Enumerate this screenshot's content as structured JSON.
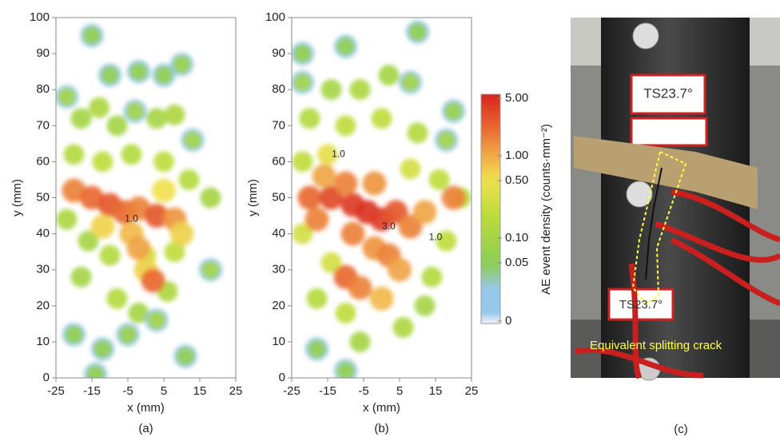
{
  "chart_data": [
    {
      "type": "heatmap",
      "label": "(a)",
      "xlabel": "x (mm)",
      "ylabel": "y (mm)",
      "xlim": [
        -25,
        25
      ],
      "ylim": [
        0,
        100
      ],
      "xticks": [
        -25,
        -15,
        -5,
        5,
        15,
        25
      ],
      "yticks": [
        0,
        10,
        20,
        30,
        40,
        50,
        60,
        70,
        80,
        90,
        100
      ],
      "x": [
        -22,
        -18,
        -13,
        -8,
        -3,
        3,
        8,
        13,
        -20,
        -12,
        -4,
        5,
        12,
        18,
        -22,
        -16,
        -10,
        0,
        8,
        18,
        -18,
        -8,
        -2,
        6,
        -20,
        -12,
        -5,
        3,
        11,
        -15,
        -10,
        -2,
        5,
        10,
        -14,
        -20,
        -15,
        -10,
        -6,
        -2,
        3,
        8,
        -4,
        0,
        2,
        -2,
        10,
        -12,
        5
      ],
      "y": [
        78,
        72,
        75,
        70,
        74,
        72,
        73,
        66,
        62,
        60,
        62,
        60,
        55,
        50,
        44,
        38,
        34,
        34,
        35,
        30,
        28,
        22,
        18,
        24,
        12,
        8,
        12,
        16,
        6,
        95,
        84,
        85,
        84,
        87,
        1,
        52,
        50,
        48,
        46,
        47,
        45,
        44,
        40,
        30,
        27,
        36,
        40,
        42,
        52
      ],
      "values": [
        0.08,
        0.1,
        0.12,
        0.1,
        0.08,
        0.1,
        0.12,
        0.08,
        0.15,
        0.2,
        0.15,
        0.2,
        0.15,
        0.1,
        0.12,
        0.1,
        0.15,
        0.3,
        0.2,
        0.08,
        0.1,
        0.15,
        0.1,
        0.12,
        0.05,
        0.05,
        0.06,
        0.08,
        0.05,
        0.05,
        0.05,
        0.05,
        0.05,
        0.06,
        0.05,
        1.5,
        2,
        2.5,
        2,
        1.5,
        2.5,
        1.2,
        0.8,
        0.6,
        2,
        1,
        0.6,
        0.6,
        0.5
      ],
      "annotations": [
        {
          "text": "1.0",
          "x": -4,
          "y": 44
        }
      ]
    },
    {
      "type": "heatmap",
      "label": "(b)",
      "xlabel": "x (mm)",
      "ylabel": "y (mm)",
      "xlim": [
        -25,
        25
      ],
      "ylim": [
        0,
        100
      ],
      "xticks": [
        -25,
        -15,
        -5,
        5,
        15,
        25
      ],
      "yticks": [
        0,
        10,
        20,
        30,
        40,
        50,
        60,
        70,
        80,
        90,
        100
      ],
      "x": [
        -22,
        -14,
        -6,
        2,
        8,
        -20,
        -10,
        0,
        10,
        18,
        -22,
        -15,
        8,
        16,
        22,
        -22,
        -14,
        18,
        14,
        -18,
        -10,
        -6,
        6,
        12,
        -18,
        -10,
        -22,
        -10,
        10,
        20,
        -20,
        -14,
        -8,
        -4,
        0,
        -10,
        -2,
        4,
        8,
        12,
        -18,
        -8,
        -2,
        2,
        -10,
        -6,
        0,
        5,
        20,
        -16
      ],
      "y": [
        82,
        80,
        80,
        84,
        82,
        72,
        70,
        72,
        68,
        66,
        60,
        62,
        58,
        55,
        50,
        40,
        32,
        38,
        28,
        22,
        18,
        10,
        14,
        20,
        8,
        2,
        90,
        92,
        96,
        74,
        50,
        50,
        48,
        46,
        44,
        54,
        54,
        46,
        42,
        46,
        44,
        40,
        36,
        34,
        28,
        25,
        22,
        30,
        50,
        56
      ],
      "values": [
        0.08,
        0.1,
        0.12,
        0.1,
        0.08,
        0.15,
        0.2,
        0.2,
        0.15,
        0.08,
        0.2,
        0.4,
        0.3,
        0.2,
        0.15,
        0.3,
        0.3,
        0.2,
        0.15,
        0.15,
        0.2,
        0.1,
        0.12,
        0.1,
        0.05,
        0.05,
        0.05,
        0.05,
        0.05,
        0.06,
        2,
        3,
        3.5,
        4,
        3.5,
        1.5,
        1.2,
        2.5,
        1.5,
        1,
        1.5,
        1.5,
        1.2,
        1.5,
        2,
        1.5,
        0.8,
        1,
        1.5,
        1
      ],
      "annotations": [
        {
          "text": "1.0",
          "x": -12,
          "y": 62
        },
        {
          "text": "3.0",
          "x": 2,
          "y": 42
        },
        {
          "text": "1.0",
          "x": 15,
          "y": 39
        }
      ]
    }
  ],
  "colorbar": {
    "label": "AE event density (counts·mm⁻²)",
    "scale": "log",
    "lim": [
      0,
      5
    ],
    "ticks": [
      {
        "value": 5,
        "label": "5.00"
      },
      {
        "value": 1,
        "label": "1.00"
      },
      {
        "value": 0.5,
        "label": "0.50"
      },
      {
        "value": 0.1,
        "label": "0.10"
      },
      {
        "value": 0.05,
        "label": "0.05"
      },
      0
    ]
  },
  "photo": {
    "label": "(c)",
    "annotation": "Equivalent splitting crack",
    "tags": [
      "TS23.7°",
      "TS23.7°"
    ]
  }
}
